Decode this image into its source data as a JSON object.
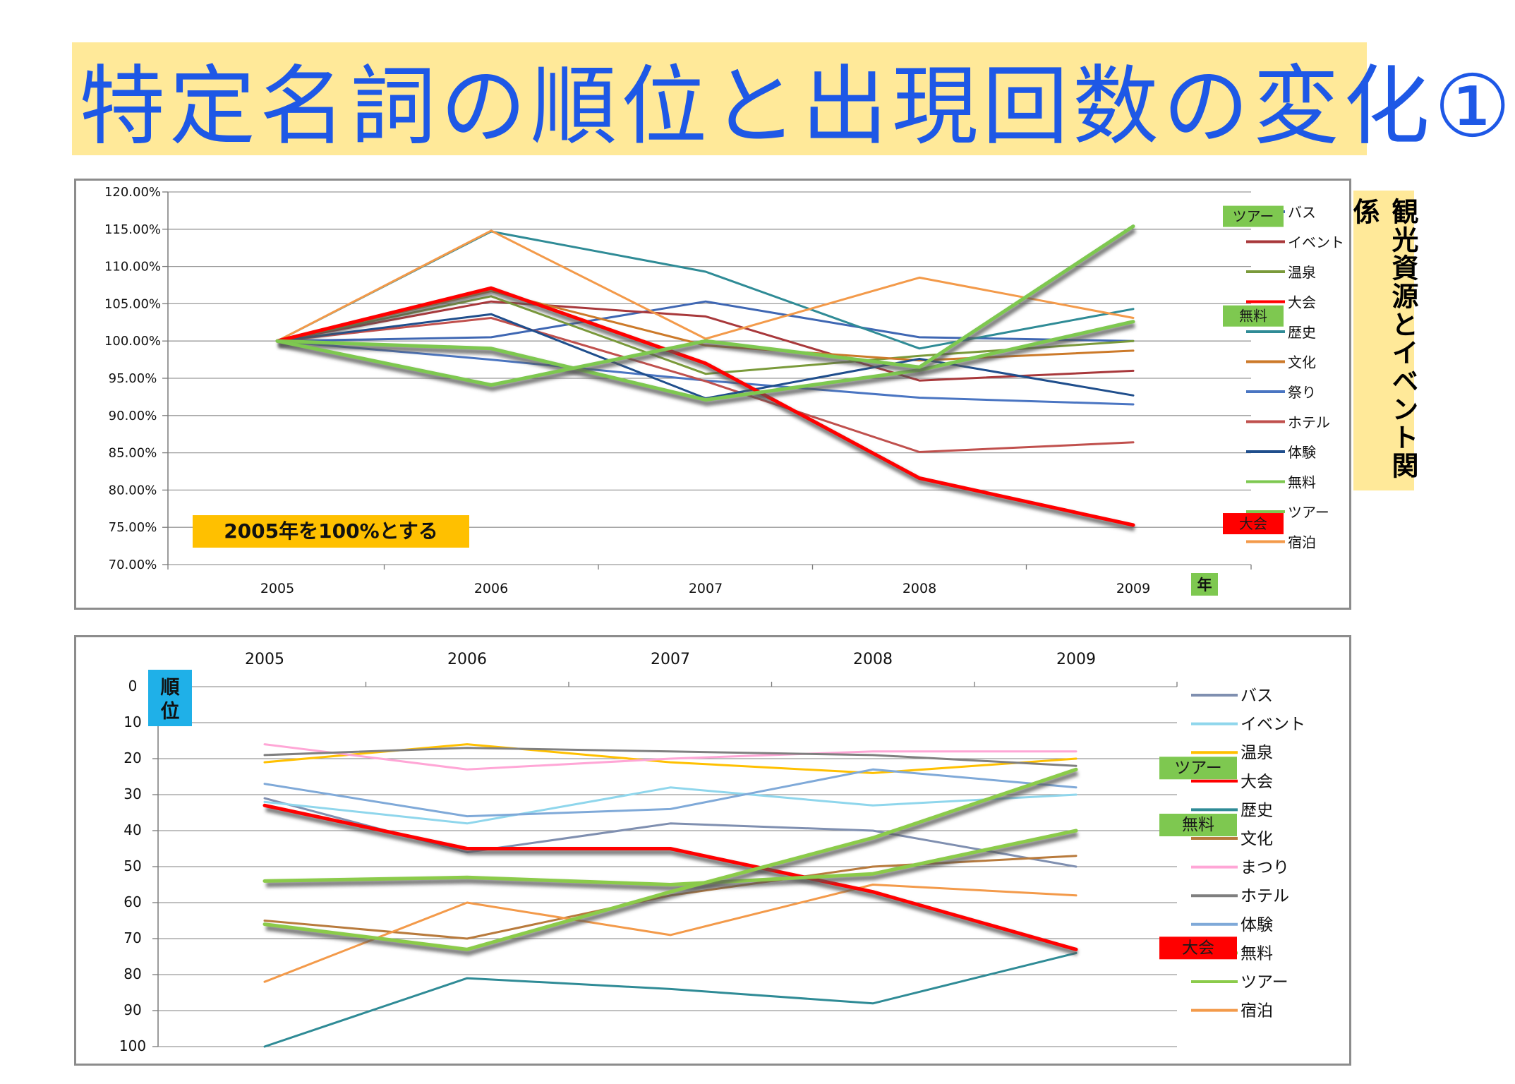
{
  "title": "特定名詞の順位と出現回数の変化①",
  "side_label": "観光資源とイベント関係",
  "chart_data": [
    {
      "type": "line",
      "categories": [
        "2005",
        "2006",
        "2007",
        "2008",
        "2009"
      ],
      "x_unit_label": "年",
      "y_ticks": [
        "120.00%",
        "115.00%",
        "110.00%",
        "105.00%",
        "100.00%",
        "95.00%",
        "90.00%",
        "85.00%",
        "80.00%",
        "75.00%",
        "70.00%"
      ],
      "ylim": [
        70,
        120
      ],
      "y_reversed": false,
      "annotation": "2005年を100%とする",
      "grid": true,
      "legend_position": "right",
      "series": [
        {
          "name": "バス",
          "color": "#3f67b3",
          "width": 3,
          "values": [
            100,
            100.5,
            105.3,
            100.5,
            100
          ]
        },
        {
          "name": "イベント",
          "color": "#a8383b",
          "width": 3,
          "values": [
            100,
            105.3,
            103.3,
            94.7,
            96
          ]
        },
        {
          "name": "温泉",
          "color": "#7a9a3a",
          "width": 3,
          "values": [
            100,
            106,
            95.6,
            98,
            100
          ]
        },
        {
          "name": "大会",
          "color": "#ff0000",
          "width": 5,
          "highlight": true,
          "values": [
            100,
            107.1,
            97,
            81.6,
            75.3
          ]
        },
        {
          "name": "歴史",
          "color": "#2f8b96",
          "width": 3,
          "values": [
            100,
            114.7,
            109.3,
            99,
            104.3
          ]
        },
        {
          "name": "文化",
          "color": "#cc7a2a",
          "width": 3,
          "values": [
            100,
            106.7,
            99.4,
            97.4,
            98.7
          ]
        },
        {
          "name": "祭り",
          "color": "#4a75c2",
          "width": 3,
          "values": [
            100,
            97.5,
            94.7,
            92.4,
            91.5
          ]
        },
        {
          "name": "ホテル",
          "color": "#c0504d",
          "width": 3,
          "values": [
            100,
            103.1,
            94.6,
            85.1,
            86.4
          ]
        },
        {
          "name": "体験",
          "color": "#1f4e8c",
          "width": 3,
          "values": [
            100,
            103.6,
            92.3,
            97.6,
            92.7
          ]
        },
        {
          "name": "無料",
          "color": "#7ec850",
          "width": 5,
          "highlight": true,
          "values": [
            100,
            99,
            92.1,
            96.1,
            102.6
          ]
        },
        {
          "name": "ツアー",
          "color": "#7ec850",
          "width": 5,
          "highlight": true,
          "values": [
            100,
            94.1,
            100,
            96.5,
            115.4
          ]
        },
        {
          "name": "宿泊",
          "color": "#f39a4a",
          "width": 3,
          "values": [
            100,
            114.8,
            100.3,
            108.5,
            103.1
          ]
        }
      ],
      "callouts": [
        {
          "text": "ツアー",
          "series": "ツアー",
          "fill": "#7ec850",
          "color": "#1a1a1a"
        },
        {
          "text": "無料",
          "series": "無料",
          "fill": "#7ec850",
          "color": "#1a1a1a"
        },
        {
          "text": "大会",
          "series": "大会",
          "fill": "#ff0000",
          "color": "#1a1a1a"
        }
      ]
    },
    {
      "type": "line",
      "categories": [
        "2005",
        "2006",
        "2007",
        "2008",
        "2009"
      ],
      "y_axis_title": "順位",
      "y_ticks": [
        "0",
        "10",
        "20",
        "30",
        "40",
        "50",
        "60",
        "70",
        "80",
        "90",
        "100"
      ],
      "ylim": [
        0,
        100
      ],
      "y_reversed": true,
      "grid": true,
      "legend_position": "right",
      "series": [
        {
          "name": "バス",
          "color": "#7f8fb0",
          "width": 3,
          "values": [
            31,
            46,
            38,
            40,
            50
          ]
        },
        {
          "name": "イベント",
          "color": "#8fd6ec",
          "width": 3,
          "values": [
            32,
            38,
            28,
            33,
            30
          ]
        },
        {
          "name": "温泉",
          "color": "#ffc000",
          "width": 3,
          "values": [
            21,
            16,
            21,
            24,
            20
          ]
        },
        {
          "name": "大会",
          "color": "#ff0000",
          "width": 5,
          "highlight": true,
          "values": [
            33,
            45,
            45,
            57,
            73
          ]
        },
        {
          "name": "歴史",
          "color": "#2f8b96",
          "width": 3,
          "values": [
            100,
            81,
            84,
            88,
            74
          ]
        },
        {
          "name": "文化",
          "color": "#b87a3c",
          "width": 3,
          "values": [
            65,
            70,
            58,
            50,
            47
          ]
        },
        {
          "name": "まつり",
          "color": "#ffa6d6",
          "width": 3,
          "values": [
            16,
            23,
            20,
            18,
            18
          ]
        },
        {
          "name": "ホテル",
          "color": "#7f7f7f",
          "width": 3,
          "values": [
            19,
            17,
            18,
            19,
            22
          ]
        },
        {
          "name": "体験",
          "color": "#7fa9d8",
          "width": 3,
          "values": [
            27,
            36,
            34,
            23,
            28
          ]
        },
        {
          "name": "無料",
          "color": "#8bcb4a",
          "width": 5,
          "highlight": true,
          "values": [
            54,
            53,
            55,
            52,
            40
          ]
        },
        {
          "name": "ツアー",
          "color": "#8bcb4a",
          "width": 5,
          "highlight": true,
          "values": [
            66,
            73,
            57,
            42,
            23
          ]
        },
        {
          "name": "宿泊",
          "color": "#f39a4a",
          "width": 3,
          "values": [
            82,
            60,
            69,
            55,
            58
          ]
        }
      ],
      "callouts": [
        {
          "text": "ツアー",
          "series": "ツアー",
          "fill": "#7ec850",
          "color": "#1a1a1a"
        },
        {
          "text": "無料",
          "series": "無料",
          "fill": "#7ec850",
          "color": "#1a1a1a"
        },
        {
          "text": "大会",
          "series": "大会",
          "fill": "#ff0000",
          "color": "#1a1a1a"
        }
      ]
    }
  ]
}
